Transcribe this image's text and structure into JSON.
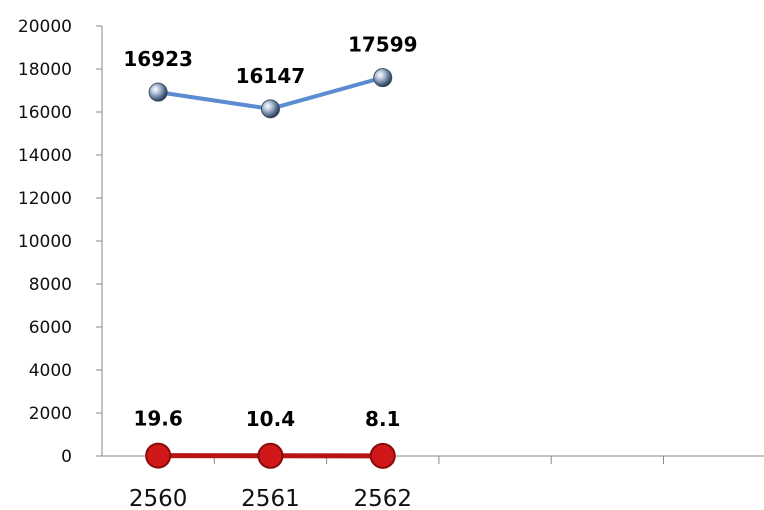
{
  "chart_data": {
    "type": "line",
    "categories": [
      "2560",
      "2561",
      "2562"
    ],
    "slots": 6,
    "ylim": [
      0,
      20000
    ],
    "yticks": [
      0,
      2000,
      4000,
      6000,
      8000,
      10000,
      12000,
      14000,
      16000,
      18000,
      20000
    ],
    "grid": false,
    "legend": "none",
    "title": "",
    "xlabel": "",
    "ylabel": "",
    "series": [
      {
        "values": [
          16923,
          16147,
          17599
        ],
        "labels": [
          "16923",
          "16147",
          "17599"
        ],
        "color": "#5B8BD0",
        "marker": "small-sphere"
      },
      {
        "values": [
          19.6,
          10.4,
          8.1
        ],
        "labels": [
          "19.6",
          "10.4",
          "8.1"
        ],
        "color": "#B81414",
        "marker": "large-circle"
      }
    ]
  }
}
